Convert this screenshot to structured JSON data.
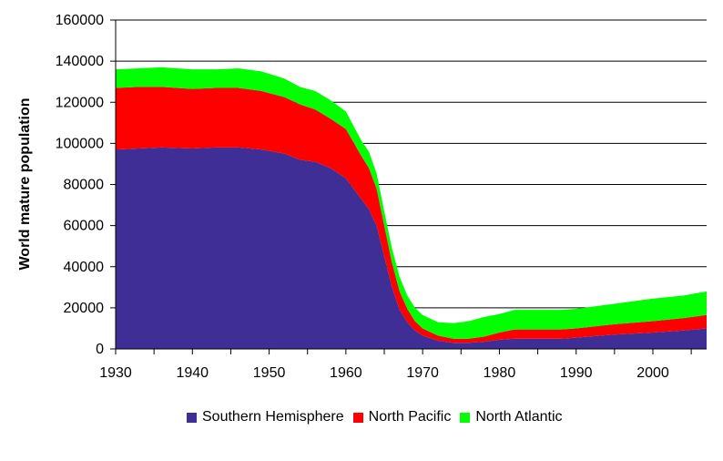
{
  "chart_data": {
    "type": "area",
    "stacked": true,
    "ylabel": "World mature population",
    "xlabel": "",
    "xlim": [
      1930,
      2007
    ],
    "ylim": [
      0,
      160000
    ],
    "x_ticks": [
      1930,
      1940,
      1950,
      1960,
      1970,
      1980,
      1990,
      2000
    ],
    "y_ticks": [
      0,
      20000,
      40000,
      60000,
      80000,
      100000,
      120000,
      140000,
      160000
    ],
    "grid": "horizontal",
    "legend_position": "bottom",
    "x": [
      1930,
      1933,
      1936,
      1940,
      1943,
      1946,
      1949,
      1952,
      1954,
      1956,
      1958,
      1960,
      1962,
      1963,
      1964,
      1965,
      1966,
      1967,
      1968,
      1969,
      1970,
      1972,
      1974,
      1976,
      1978,
      1980,
      1982,
      1985,
      1988,
      1990,
      1995,
      2000,
      2004,
      2007
    ],
    "series": [
      {
        "name": "Southern Hemisphere",
        "color": "#3f2e96",
        "values": [
          97000,
          97500,
          98000,
          97500,
          98000,
          98000,
          97000,
          95000,
          92000,
          91000,
          88000,
          83000,
          73000,
          68000,
          60000,
          45000,
          30000,
          19000,
          13000,
          9000,
          6500,
          4000,
          3000,
          3000,
          3500,
          4500,
          5000,
          5000,
          5000,
          5500,
          7000,
          8000,
          9000,
          10000
        ]
      },
      {
        "name": "North Pacific",
        "color": "#ff0000",
        "values": [
          30000,
          30000,
          29500,
          29000,
          29000,
          29000,
          28500,
          27500,
          27000,
          25500,
          24000,
          24000,
          21000,
          20000,
          18000,
          15000,
          12000,
          9000,
          6500,
          4500,
          3500,
          2500,
          2000,
          2000,
          2500,
          3500,
          4500,
          4500,
          4500,
          4500,
          5000,
          5500,
          6000,
          6500
        ]
      },
      {
        "name": "North Atlantic",
        "color": "#00ff00",
        "values": [
          9000,
          9000,
          9500,
          9500,
          9000,
          9500,
          9500,
          9000,
          8500,
          9000,
          9000,
          8500,
          7500,
          8000,
          7500,
          7000,
          7000,
          7000,
          6500,
          6500,
          6500,
          6500,
          7500,
          8500,
          9500,
          9000,
          9500,
          9500,
          9500,
          9500,
          10000,
          11000,
          11000,
          11500
        ]
      }
    ]
  }
}
